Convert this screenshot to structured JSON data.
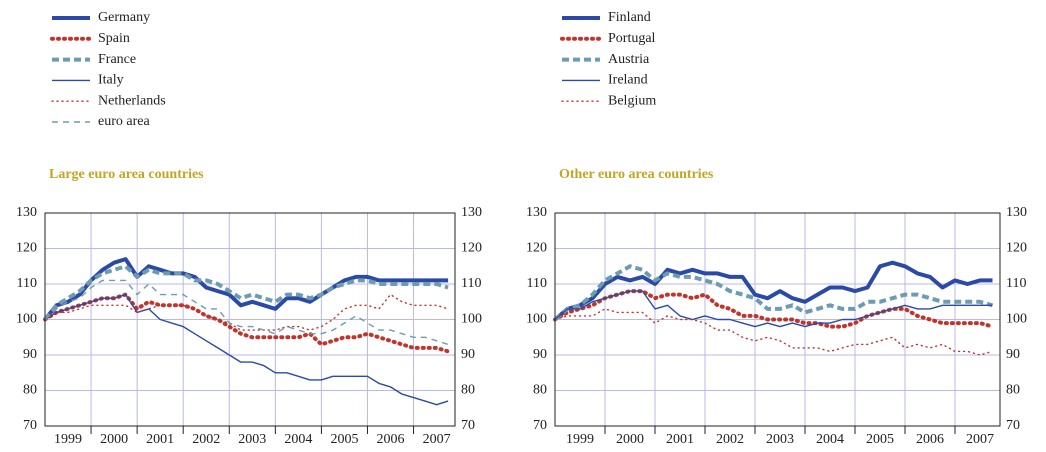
{
  "chart_data": [
    {
      "type": "line",
      "title": "Large euro area countries",
      "x": [
        1999,
        1999.25,
        1999.5,
        1999.75,
        2000,
        2000.25,
        2000.5,
        2000.75,
        2001,
        2001.25,
        2001.5,
        2001.75,
        2002,
        2002.25,
        2002.5,
        2002.75,
        2003,
        2003.25,
        2003.5,
        2003.75,
        2004,
        2004.25,
        2004.5,
        2004.75,
        2005,
        2005.25,
        2005.5,
        2005.75,
        2006,
        2006.25,
        2006.5,
        2006.75,
        2007,
        2007.25,
        2007.5,
        2007.75
      ],
      "xlim": [
        1999,
        2007.9
      ],
      "xgrid": [
        2000,
        2001,
        2002,
        2003,
        2004,
        2005,
        2006,
        2007
      ],
      "xticks": [
        {
          "value": 1999.5,
          "label": "1999"
        },
        {
          "value": 2000.5,
          "label": "2000"
        },
        {
          "value": 2001.5,
          "label": "2001"
        },
        {
          "value": 2002.5,
          "label": "2002"
        },
        {
          "value": 2003.5,
          "label": "2003"
        },
        {
          "value": 2004.5,
          "label": "2004"
        },
        {
          "value": 2005.5,
          "label": "2005"
        },
        {
          "value": 2006.5,
          "label": "2006"
        },
        {
          "value": 2007.5,
          "label": "2007"
        }
      ],
      "ylim": [
        70,
        130
      ],
      "yticks": [
        70,
        80,
        90,
        100,
        110,
        120,
        130
      ],
      "grid": true,
      "series": [
        {
          "name": "Germany",
          "color": "#2b4aa6",
          "style": "solid",
          "weight": "thick",
          "values": [
            100,
            104,
            105,
            107,
            111,
            114,
            116,
            117,
            112,
            115,
            114,
            113,
            113,
            112,
            109,
            108,
            107,
            104,
            105,
            104,
            103,
            106,
            106,
            105,
            107,
            109,
            111,
            112,
            112,
            111,
            111,
            111,
            111,
            111,
            111,
            111
          ]
        },
        {
          "name": "Spain",
          "color": "#c0342c",
          "style": "dotted",
          "weight": "thick",
          "values": [
            100,
            102,
            103,
            104,
            105,
            106,
            106,
            107,
            103,
            105,
            104,
            104,
            104,
            103,
            101,
            100,
            98,
            96,
            95,
            95,
            95,
            95,
            95,
            96,
            93,
            94,
            95,
            95,
            96,
            95,
            94,
            93,
            92,
            92,
            92,
            91
          ]
        },
        {
          "name": "France",
          "color": "#6d9bb2",
          "style": "dashed",
          "weight": "thick",
          "values": [
            100,
            104,
            106,
            108,
            111,
            113,
            114,
            115,
            112,
            114,
            113,
            113,
            113,
            111,
            111,
            110,
            108,
            106,
            107,
            106,
            105,
            107,
            107,
            106,
            107,
            109,
            110,
            111,
            111,
            110,
            110,
            110,
            110,
            110,
            110,
            109
          ]
        },
        {
          "name": "Italy",
          "color": "#2b4aa6",
          "style": "solid",
          "weight": "thin",
          "values": [
            100,
            102,
            103,
            104,
            105,
            106,
            106,
            107,
            102,
            103,
            100,
            99,
            98,
            96,
            94,
            92,
            90,
            88,
            88,
            87,
            85,
            85,
            84,
            83,
            83,
            84,
            84,
            84,
            84,
            82,
            81,
            79,
            78,
            77,
            76,
            77
          ]
        },
        {
          "name": "Netherlands",
          "color": "#c0342c",
          "style": "dotted",
          "weight": "thin",
          "values": [
            100,
            102,
            102,
            103,
            104,
            104,
            104,
            104,
            102,
            103,
            104,
            104,
            104,
            103,
            101,
            100,
            99,
            97,
            97,
            97,
            97,
            98,
            98,
            97,
            98,
            100,
            103,
            104,
            104,
            103,
            107,
            105,
            104,
            104,
            104,
            103
          ]
        },
        {
          "name": "euro area",
          "color": "#6d9bb2",
          "style": "dashed",
          "weight": "thin",
          "values": [
            100,
            103,
            105,
            106,
            109,
            111,
            111,
            111,
            107,
            110,
            107,
            107,
            107,
            105,
            103,
            103,
            99,
            98,
            98,
            97,
            96,
            98,
            97,
            96,
            96,
            97,
            99,
            101,
            99,
            97,
            97,
            96,
            95,
            95,
            94,
            93
          ]
        }
      ]
    },
    {
      "type": "line",
      "title": "Other euro area countries",
      "x": [
        1999,
        1999.25,
        1999.5,
        1999.75,
        2000,
        2000.25,
        2000.5,
        2000.75,
        2001,
        2001.25,
        2001.5,
        2001.75,
        2002,
        2002.25,
        2002.5,
        2002.75,
        2003,
        2003.25,
        2003.5,
        2003.75,
        2004,
        2004.25,
        2004.5,
        2004.75,
        2005,
        2005.25,
        2005.5,
        2005.75,
        2006,
        2006.25,
        2006.5,
        2006.75,
        2007,
        2007.25,
        2007.5,
        2007.75
      ],
      "xlim": [
        1999,
        2007.9
      ],
      "xgrid": [
        2000,
        2001,
        2002,
        2003,
        2004,
        2005,
        2006,
        2007
      ],
      "xticks": [
        {
          "value": 1999.5,
          "label": "1999"
        },
        {
          "value": 2000.5,
          "label": "2000"
        },
        {
          "value": 2001.5,
          "label": "2001"
        },
        {
          "value": 2002.5,
          "label": "2002"
        },
        {
          "value": 2003.5,
          "label": "2003"
        },
        {
          "value": 2004.5,
          "label": "2004"
        },
        {
          "value": 2005.5,
          "label": "2005"
        },
        {
          "value": 2006.5,
          "label": "2006"
        },
        {
          "value": 2007.5,
          "label": "2007"
        }
      ],
      "ylim": [
        70,
        130
      ],
      "yticks": [
        70,
        80,
        90,
        100,
        110,
        120,
        130
      ],
      "grid": true,
      "series": [
        {
          "name": "Finland",
          "color": "#2b4aa6",
          "style": "solid",
          "weight": "thick",
          "values": [
            100,
            103,
            104,
            106,
            110,
            112,
            111,
            112,
            110,
            114,
            113,
            114,
            113,
            113,
            112,
            112,
            107,
            106,
            108,
            106,
            105,
            107,
            109,
            109,
            108,
            109,
            115,
            116,
            115,
            113,
            112,
            109,
            111,
            110,
            111,
            111
          ]
        },
        {
          "name": "Portugal",
          "color": "#c0342c",
          "style": "dotted",
          "weight": "thick",
          "values": [
            100,
            102,
            103,
            104,
            106,
            107,
            108,
            108,
            106,
            107,
            107,
            106,
            107,
            104,
            103,
            101,
            101,
            100,
            100,
            100,
            99,
            99,
            98,
            98,
            99,
            101,
            102,
            103,
            103,
            101,
            100,
            99,
            99,
            99,
            99,
            98
          ]
        },
        {
          "name": "Austria",
          "color": "#6d9bb2",
          "style": "dashed",
          "weight": "thick",
          "values": [
            100,
            103,
            104,
            107,
            111,
            113,
            115,
            114,
            111,
            113,
            112,
            112,
            111,
            110,
            108,
            107,
            106,
            103,
            103,
            104,
            102,
            103,
            104,
            103,
            103,
            105,
            105,
            106,
            107,
            107,
            106,
            105,
            105,
            105,
            105,
            104
          ]
        },
        {
          "name": "Ireland",
          "color": "#2b4aa6",
          "style": "solid",
          "weight": "thin",
          "values": [
            100,
            103,
            103,
            105,
            106,
            107,
            108,
            108,
            103,
            104,
            101,
            100,
            101,
            100,
            100,
            99,
            98,
            99,
            98,
            99,
            98,
            99,
            99,
            100,
            100,
            101,
            102,
            103,
            104,
            103,
            103,
            104,
            104,
            104,
            104,
            104
          ]
        },
        {
          "name": "Belgium",
          "color": "#c0342c",
          "style": "dotted",
          "weight": "thin",
          "values": [
            100,
            101,
            101,
            101,
            103,
            102,
            102,
            102,
            99,
            101,
            100,
            100,
            99,
            97,
            97,
            95,
            94,
            95,
            94,
            92,
            92,
            92,
            91,
            92,
            93,
            93,
            94,
            95,
            92,
            93,
            92,
            93,
            91,
            91,
            90,
            91
          ]
        }
      ]
    }
  ]
}
